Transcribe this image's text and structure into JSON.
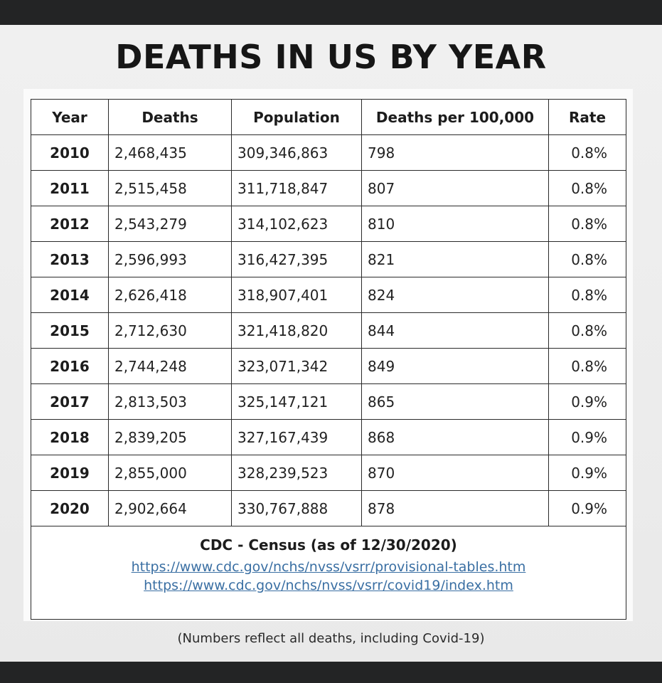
{
  "title": "DEATHS IN US BY YEAR",
  "chart_data": {
    "type": "table",
    "columns": [
      "Year",
      "Deaths",
      "Population",
      "Deaths per 100,000",
      "Rate"
    ],
    "rows": [
      [
        "2010",
        "2,468,435",
        "309,346,863",
        "798",
        "0.8%"
      ],
      [
        "2011",
        "2,515,458",
        "311,718,847",
        "807",
        "0.8%"
      ],
      [
        "2012",
        "2,543,279",
        "314,102,623",
        "810",
        "0.8%"
      ],
      [
        "2013",
        "2,596,993",
        "316,427,395",
        "821",
        "0.8%"
      ],
      [
        "2014",
        "2,626,418",
        "318,907,401",
        "824",
        "0.8%"
      ],
      [
        "2015",
        "2,712,630",
        "321,418,820",
        "844",
        "0.8%"
      ],
      [
        "2016",
        "2,744,248",
        "323,071,342",
        "849",
        "0.8%"
      ],
      [
        "2017",
        "2,813,503",
        "325,147,121",
        "865",
        "0.9%"
      ],
      [
        "2018",
        "2,839,205",
        "327,167,439",
        "868",
        "0.9%"
      ],
      [
        "2019",
        "2,855,000",
        "328,239,523",
        "870",
        "0.9%"
      ],
      [
        "2020",
        "2,902,664",
        "330,767,888",
        "878",
        "0.9%"
      ]
    ]
  },
  "footer": {
    "source": "CDC - Census (as of 12/30/2020)",
    "links": [
      "https://www.cdc.gov/nchs/nvss/vsrr/provisional-tables.htm",
      "https://www.cdc.gov/nchs/nvss/vsrr/covid19/index.htm"
    ]
  },
  "note": "(Numbers reflect all deaths, including Covid-19)",
  "colors": {
    "link": "#3a6fa3",
    "background": "#232425",
    "sheet": "#eeeeee"
  }
}
